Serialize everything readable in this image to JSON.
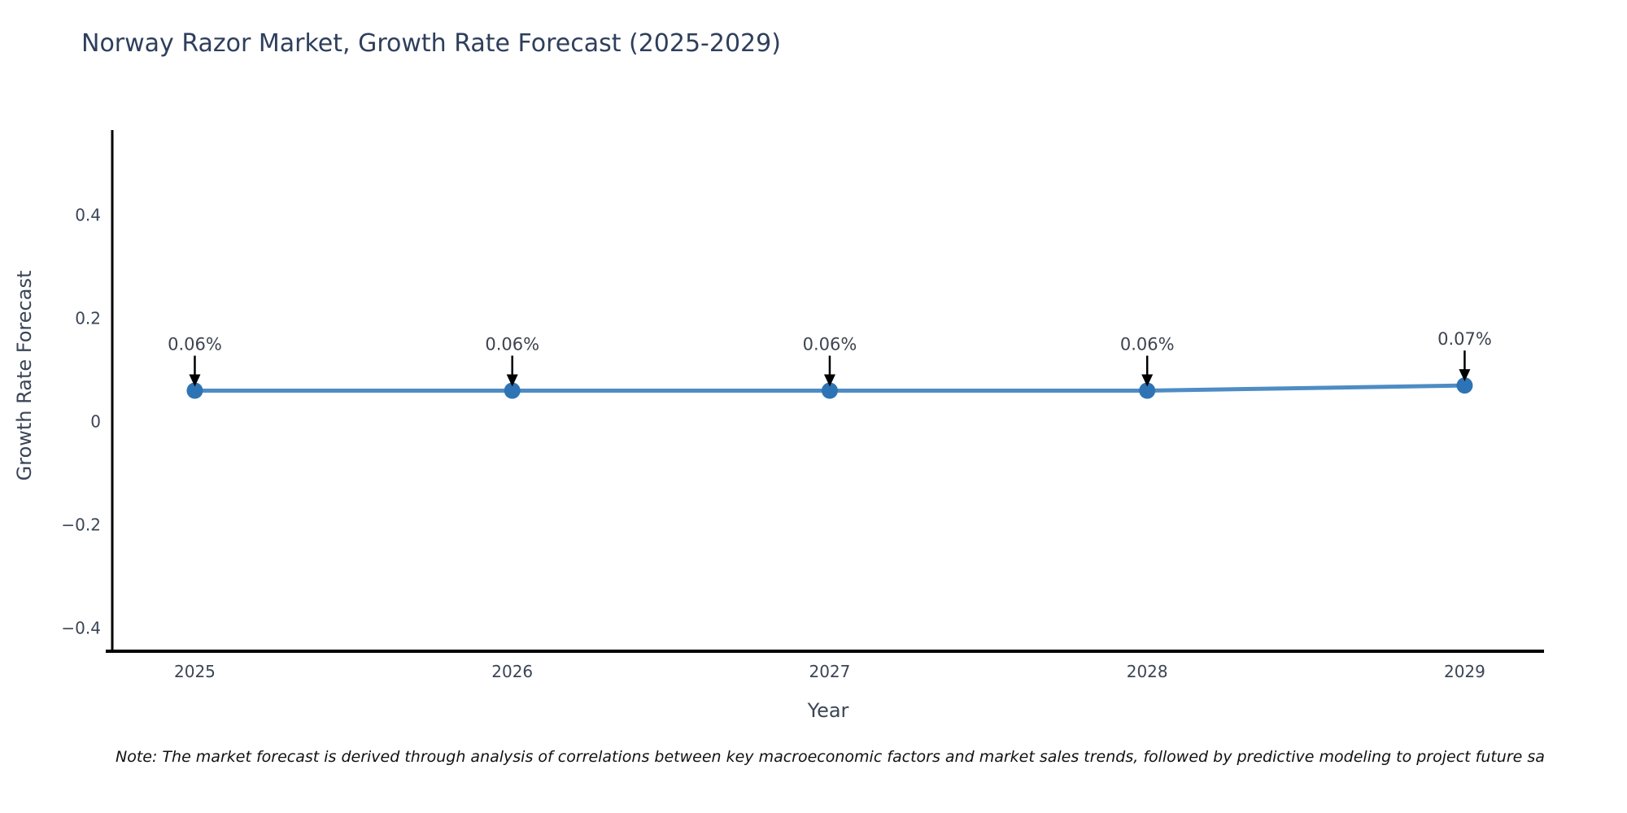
{
  "title": "Norway Razor Market, Growth Rate Forecast (2025-2029)",
  "footnote": "Note: The market forecast is derived through analysis of correlations between key macroeconomic factors and market sales trends, followed by predictive modeling to project future sa",
  "chart_data": {
    "type": "line",
    "title": "Norway Razor Market, Growth Rate Forecast (2025-2029)",
    "xlabel": "Year",
    "ylabel": "Growth Rate Forecast",
    "x": [
      2025,
      2026,
      2027,
      2028,
      2029
    ],
    "xtick_labels": [
      "2025",
      "2026",
      "2027",
      "2028",
      "2029"
    ],
    "values": [
      0.06,
      0.06,
      0.06,
      0.06,
      0.07
    ],
    "point_labels": [
      "0.06%",
      "0.06%",
      "0.06%",
      "0.06%",
      "0.07%"
    ],
    "yticks": [
      0.4,
      0.2,
      0,
      -0.2,
      -0.4
    ],
    "ytick_labels": [
      "0.4",
      "0.2",
      "0",
      "−0.2",
      "−0.4"
    ],
    "xlim": [
      2024.74,
      2029.25
    ],
    "ylim": [
      -0.445,
      0.565
    ],
    "grid": false,
    "legend_position": "none",
    "colors": {
      "line": "#4e8cc4",
      "marker": "#2e74b5",
      "annotation_text": "#3d4450",
      "annotation_arrow": "#000000",
      "axis_spine": "#000000",
      "tick_text": "#3a4556",
      "title_text": "#2e3f5c",
      "note_text": "#111111",
      "background": "#ffffff"
    }
  }
}
